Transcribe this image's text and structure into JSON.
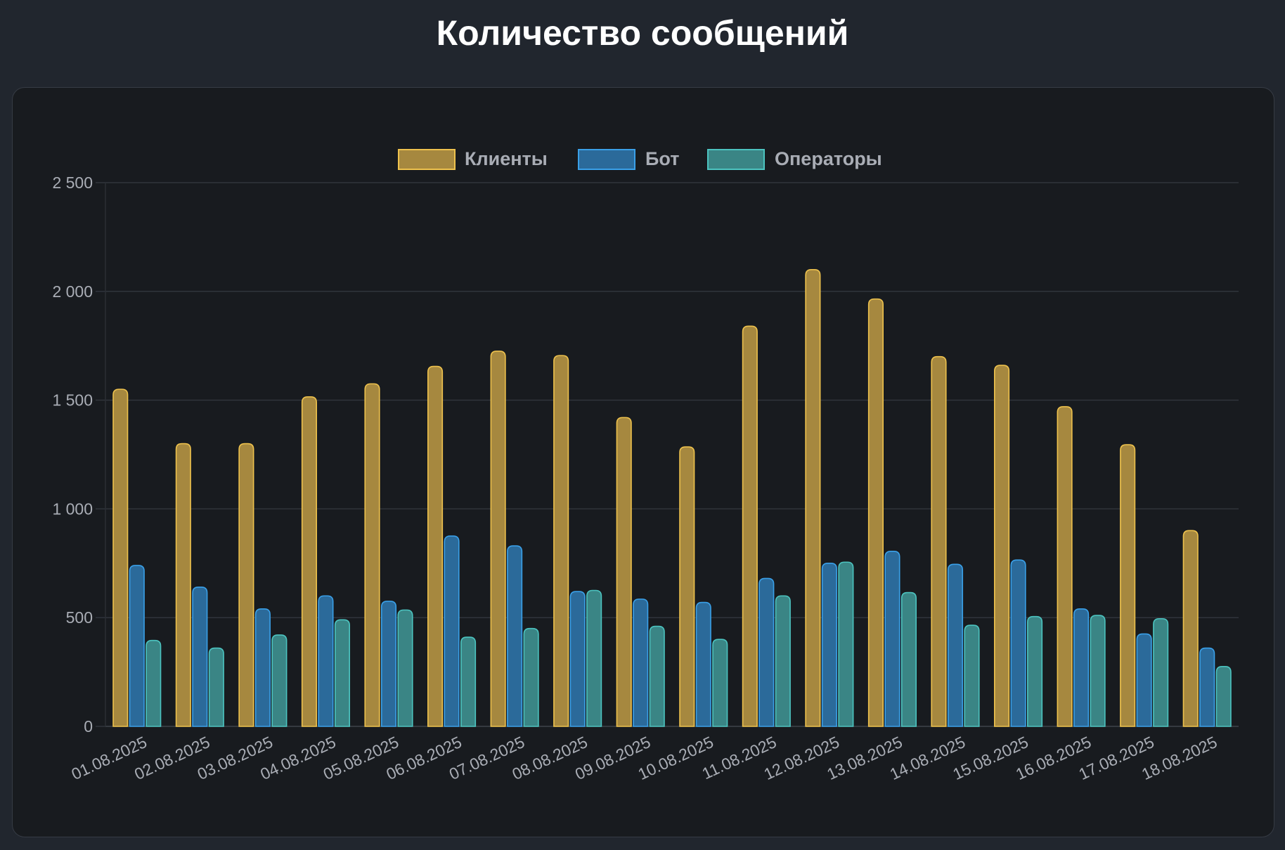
{
  "page": {
    "title": "Количество сообщений"
  },
  "chart_data": {
    "type": "bar",
    "title": "Количество сообщений",
    "xlabel": "",
    "ylabel": "",
    "ylim": [
      0,
      2500
    ],
    "yticks": [
      0,
      500,
      1000,
      1500,
      2000,
      2500
    ],
    "ytick_labels": [
      "0",
      "500",
      "1 000",
      "1 500",
      "2 000",
      "2 500"
    ],
    "grid": true,
    "legend_position": "top-center",
    "categories": [
      "01.08.2025",
      "02.08.2025",
      "03.08.2025",
      "04.08.2025",
      "05.08.2025",
      "06.08.2025",
      "07.08.2025",
      "08.08.2025",
      "09.08.2025",
      "10.08.2025",
      "11.08.2025",
      "12.08.2025",
      "13.08.2025",
      "14.08.2025",
      "15.08.2025",
      "16.08.2025",
      "17.08.2025",
      "18.08.2025"
    ],
    "series": [
      {
        "name": "Клиенты",
        "fill": "#a6883f",
        "stroke": "#eec24d",
        "values": [
          1550,
          1300,
          1300,
          1515,
          1575,
          1655,
          1725,
          1705,
          1420,
          1285,
          1840,
          2100,
          1965,
          1700,
          1660,
          1470,
          1295,
          900
        ]
      },
      {
        "name": "Бот",
        "fill": "#2b6a9a",
        "stroke": "#3aa0e8",
        "values": [
          740,
          640,
          540,
          600,
          575,
          875,
          830,
          620,
          585,
          570,
          680,
          750,
          805,
          745,
          765,
          540,
          425,
          360
        ]
      },
      {
        "name": "Операторы",
        "fill": "#3a8585",
        "stroke": "#4cc4c0",
        "values": [
          395,
          360,
          420,
          490,
          535,
          410,
          450,
          625,
          460,
          400,
          600,
          755,
          615,
          465,
          505,
          510,
          495,
          275
        ]
      }
    ]
  }
}
